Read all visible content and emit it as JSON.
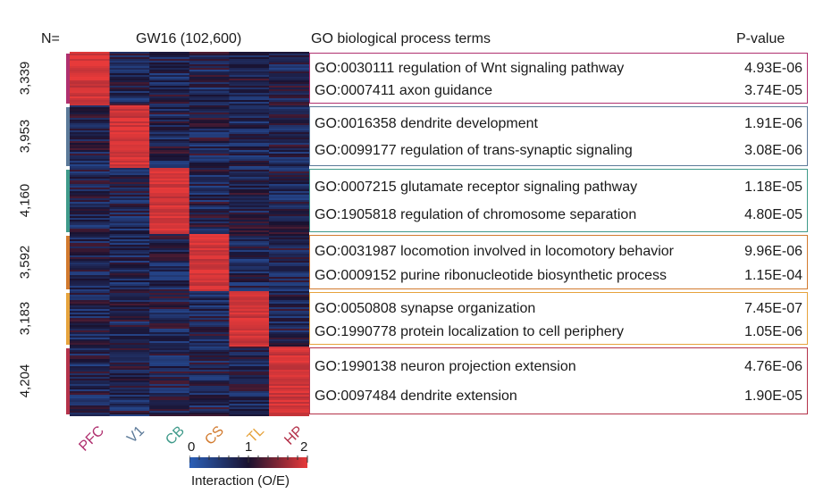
{
  "header": {
    "n_label": "N=",
    "dataset_title": "GW16 (102,600)",
    "go_title": "GO biological process terms",
    "pvalue_title": "P-value"
  },
  "chart_data": {
    "type": "heatmap",
    "columns": [
      "PFC",
      "V1",
      "CB",
      "CS",
      "TL",
      "HP"
    ],
    "column_colors": [
      "#b0306f",
      "#5c7a99",
      "#3f9a8a",
      "#d27a2e",
      "#e6a33c",
      "#b4324a"
    ],
    "clusters": [
      {
        "count": "3,339",
        "n": 3339,
        "high_column": "PFC",
        "terms": [
          {
            "term": "GO:0030111 regulation of Wnt signaling pathway",
            "p": "4.93E-06"
          },
          {
            "term": "GO:0007411 axon guidance",
            "p": "3.74E-05"
          }
        ]
      },
      {
        "count": "3,953",
        "n": 3953,
        "high_column": "V1",
        "terms": [
          {
            "term": "GO:0016358 dendrite development",
            "p": "1.91E-06"
          },
          {
            "term": "GO:0099177 regulation of trans-synaptic signaling",
            "p": "3.08E-06"
          }
        ]
      },
      {
        "count": "4,160",
        "n": 4160,
        "high_column": "CB",
        "terms": [
          {
            "term": "GO:0007215 glutamate receptor signaling pathway",
            "p": "1.18E-05"
          },
          {
            "term": "GO:1905818 regulation of chromosome separation",
            "p": "4.80E-05"
          }
        ]
      },
      {
        "count": "3,592",
        "n": 3592,
        "high_column": "CS",
        "terms": [
          {
            "term": "GO:0031987 locomotion involved in locomotory behavior",
            "p": "9.96E-06"
          },
          {
            "term": "GO:0009152 purine ribonucleotide biosynthetic process",
            "p": "1.15E-04"
          }
        ]
      },
      {
        "count": "3,183",
        "n": 3183,
        "high_column": "TL",
        "terms": [
          {
            "term": "GO:0050808 synapse organization",
            "p": "7.45E-07"
          },
          {
            "term": "GO:1990778 protein localization to cell periphery",
            "p": "1.05E-06"
          }
        ]
      },
      {
        "count": "4,204",
        "n": 4204,
        "high_column": "HP",
        "terms": [
          {
            "term": "GO:1990138 neuron projection extension",
            "p": "4.76E-06"
          },
          {
            "term": "GO:0097484 dendrite extension",
            "p": "1.90E-05"
          }
        ]
      }
    ],
    "cluster_colors": [
      "#b0306f",
      "#5c7a99",
      "#3f9a8a",
      "#d27a2e",
      "#e6a33c",
      "#b4324a"
    ],
    "colorscale": {
      "label": "Interaction (O/E)",
      "ticks": [
        "0",
        "1",
        "2"
      ],
      "range": [
        0,
        2
      ],
      "colors": [
        "#2a5fb8",
        "#1a1230",
        "#e83a3a"
      ]
    }
  }
}
